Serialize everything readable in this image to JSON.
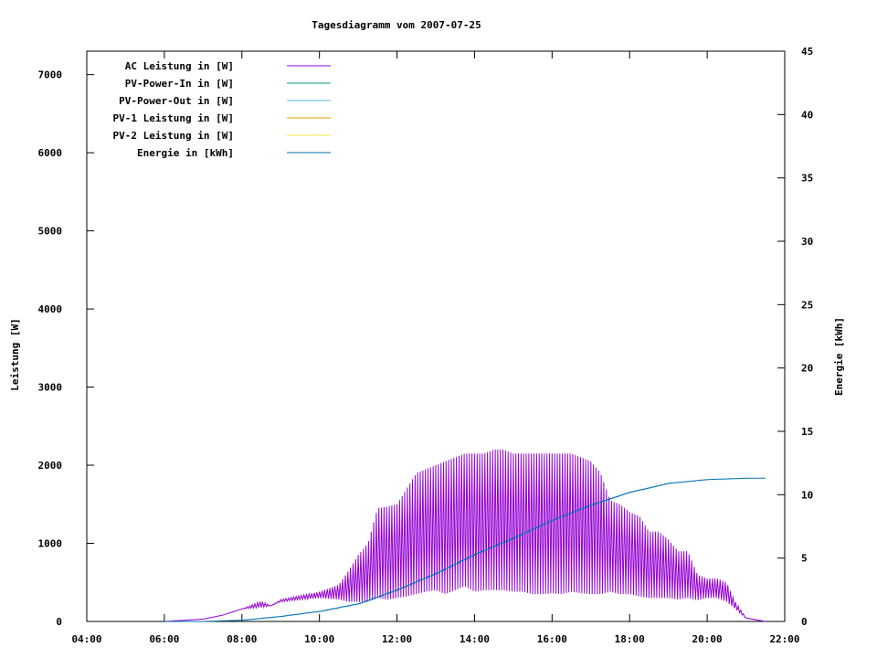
{
  "chart_data": {
    "type": "line",
    "title": "Tagesdiagramm vom 2007-07-25",
    "xlabel": "",
    "ylabel": "Leistung [W]",
    "y2label": "Energie [kWh]",
    "xlim": [
      "04:00",
      "22:00"
    ],
    "ylim": [
      0,
      7300
    ],
    "y2lim": [
      0,
      45
    ],
    "x_ticks": [
      "04:00",
      "06:00",
      "08:00",
      "10:00",
      "12:00",
      "14:00",
      "16:00",
      "18:00",
      "20:00",
      "22:00"
    ],
    "y_ticks": [
      0,
      1000,
      2000,
      3000,
      4000,
      5000,
      6000,
      7000
    ],
    "y2_ticks": [
      0,
      5,
      10,
      15,
      20,
      25,
      30,
      35,
      40,
      45
    ],
    "grid": false,
    "legend_position": "top-left",
    "series": [
      {
        "name": "AC Leistung in [W]",
        "axis": "left",
        "color": "#9400d3",
        "x": [
          "06:00",
          "07:00",
          "07:30",
          "08:00",
          "08:30",
          "08:45",
          "09:00",
          "09:30",
          "10:00",
          "10:30",
          "10:45",
          "11:00",
          "11:15",
          "11:30",
          "11:45",
          "12:00",
          "12:15",
          "12:30",
          "12:45",
          "13:00",
          "13:15",
          "13:30",
          "13:45",
          "14:00",
          "14:15",
          "14:30",
          "14:45",
          "15:00",
          "15:15",
          "15:30",
          "15:45",
          "16:00",
          "16:15",
          "16:30",
          "16:45",
          "17:00",
          "17:15",
          "17:30",
          "17:45",
          "18:00",
          "18:15",
          "18:30",
          "18:45",
          "19:00",
          "19:15",
          "19:30",
          "19:45",
          "20:00",
          "20:15",
          "20:30",
          "20:45",
          "21:00",
          "21:30"
        ],
        "upper": [
          0,
          30,
          80,
          160,
          260,
          200,
          280,
          330,
          380,
          470,
          650,
          850,
          1000,
          1450,
          1470,
          1500,
          1700,
          1900,
          1950,
          2000,
          2050,
          2100,
          2150,
          2150,
          2150,
          2200,
          2200,
          2150,
          2150,
          2150,
          2150,
          2150,
          2150,
          2150,
          2100,
          2050,
          1900,
          1550,
          1500,
          1400,
          1350,
          1150,
          1150,
          1050,
          900,
          900,
          600,
          550,
          550,
          500,
          230,
          50,
          0
        ],
        "lower": [
          0,
          30,
          80,
          160,
          180,
          200,
          250,
          280,
          300,
          280,
          250,
          250,
          250,
          300,
          280,
          300,
          320,
          350,
          380,
          400,
          350,
          400,
          450,
          380,
          400,
          400,
          400,
          380,
          380,
          350,
          350,
          360,
          350,
          380,
          360,
          350,
          350,
          380,
          350,
          350,
          320,
          300,
          300,
          300,
          280,
          300,
          270,
          300,
          300,
          250,
          150,
          40,
          0
        ]
      },
      {
        "name": "PV-Power-In in [W]",
        "axis": "left",
        "color": "#009e73",
        "values": []
      },
      {
        "name": "PV-Power-Out in [W]",
        "axis": "left",
        "color": "#56b4e9",
        "values": []
      },
      {
        "name": "PV-1 Leistung in [W]",
        "axis": "left",
        "color": "#e69f00",
        "values": []
      },
      {
        "name": "PV-2 Leistung in [W]",
        "axis": "left",
        "color": "#f0e442",
        "values": []
      },
      {
        "name": "Energie in [kWh]",
        "axis": "right",
        "color": "#0072b2",
        "x": [
          "06:00",
          "07:00",
          "08:00",
          "09:00",
          "10:00",
          "11:00",
          "12:00",
          "13:00",
          "14:00",
          "15:00",
          "16:00",
          "17:00",
          "18:00",
          "19:00",
          "20:00",
          "21:00",
          "21:30"
        ],
        "values": [
          0,
          0,
          0.1,
          0.4,
          0.8,
          1.4,
          2.5,
          3.8,
          5.3,
          6.6,
          8.0,
          9.2,
          10.2,
          10.9,
          11.2,
          11.3,
          11.3
        ]
      }
    ]
  }
}
